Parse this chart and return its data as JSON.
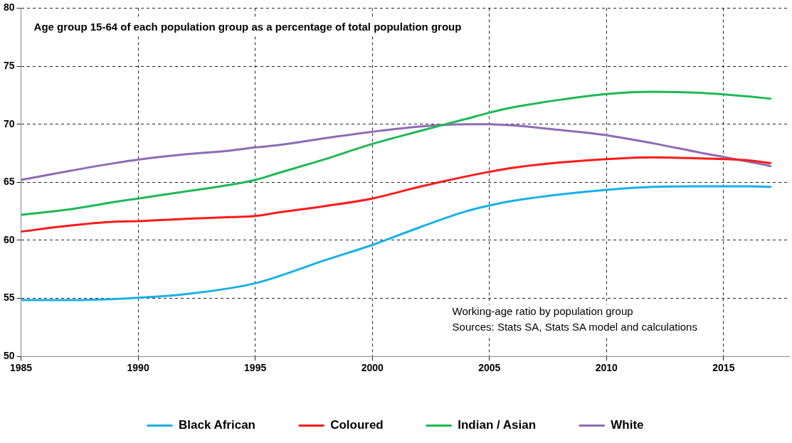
{
  "chart_data": {
    "type": "line",
    "title": "Age group 15-64 of each population group as a percentage of total population group",
    "x": [
      1985,
      1987,
      1989,
      1990,
      1992,
      1994,
      1995,
      1996,
      1998,
      2000,
      2002,
      2004,
      2005,
      2006,
      2008,
      2010,
      2012,
      2014,
      2016,
      2017
    ],
    "series": [
      {
        "name": "Black African",
        "color": "#17b0e8",
        "values": [
          54.85,
          54.85,
          54.95,
          55.05,
          55.35,
          55.9,
          56.3,
          56.9,
          58.3,
          59.6,
          61.1,
          62.5,
          63.0,
          63.4,
          63.95,
          64.35,
          64.6,
          64.65,
          64.65,
          64.6
        ]
      },
      {
        "name": "Coloured",
        "color": "#ff1a1a",
        "values": [
          60.75,
          61.25,
          61.6,
          61.65,
          61.85,
          62.0,
          62.1,
          62.4,
          62.95,
          63.6,
          64.6,
          65.5,
          65.9,
          66.25,
          66.7,
          67.0,
          67.15,
          67.05,
          66.9,
          66.65
        ]
      },
      {
        "name": "Indian / Asian",
        "color": "#1db954",
        "values": [
          62.2,
          62.65,
          63.3,
          63.6,
          64.2,
          64.8,
          65.2,
          65.8,
          67.0,
          68.3,
          69.4,
          70.45,
          71.0,
          71.45,
          72.1,
          72.6,
          72.8,
          72.7,
          72.4,
          72.2
        ]
      },
      {
        "name": "White",
        "color": "#8e6bb5",
        "values": [
          65.2,
          65.95,
          66.65,
          66.95,
          67.4,
          67.75,
          68.0,
          68.2,
          68.8,
          69.35,
          69.8,
          70.0,
          70.0,
          69.9,
          69.5,
          69.05,
          68.35,
          67.55,
          66.8,
          66.4
        ]
      }
    ],
    "xlim": [
      1985,
      2017.8
    ],
    "xticks": [
      1985,
      1990,
      1995,
      2000,
      2005,
      2010,
      2015
    ],
    "ylim": [
      50,
      80
    ],
    "yticks": [
      50,
      55,
      60,
      65,
      70,
      75,
      80
    ],
    "grid": true,
    "legend": "bottom",
    "marker": "none",
    "line_style": "solid",
    "annotations": [
      "Working-age ratio by population group",
      "Sources: Stats SA, Stats SA model and calculations"
    ]
  }
}
